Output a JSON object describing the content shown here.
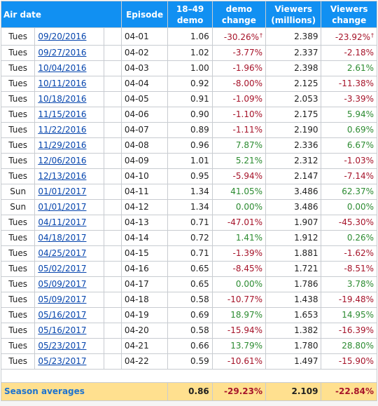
{
  "headers": {
    "air_date": "Air date",
    "episode": "Episode",
    "demo_l1": "18–49",
    "demo_l2": "demo",
    "demo_change_l1": "demo",
    "demo_change_l2": "change",
    "viewers_l1": "Viewers",
    "viewers_l2": "(millions)",
    "viewers_change_l1": "Viewers",
    "viewers_change_l2": "change"
  },
  "rows": [
    {
      "day": "Tues",
      "date": "09/20/2016",
      "episode": "04-01",
      "demo": "1.06",
      "demo_change": "-30.26%",
      "demo_change_dagger": "†",
      "viewers": "2.389",
      "viewers_change": "-23.92%",
      "viewers_change_dagger": "†"
    },
    {
      "day": "Tues",
      "date": "09/27/2016",
      "episode": "04-02",
      "demo": "1.02",
      "demo_change": "-3.77%",
      "viewers": "2.337",
      "viewers_change": "-2.18%"
    },
    {
      "day": "Tues",
      "date": "10/04/2016",
      "episode": "04-03",
      "demo": "1.00",
      "demo_change": "-1.96%",
      "viewers": "2.398",
      "viewers_change": "2.61%"
    },
    {
      "day": "Tues",
      "date": "10/11/2016",
      "episode": "04-04",
      "demo": "0.92",
      "demo_change": "-8.00%",
      "viewers": "2.125",
      "viewers_change": "-11.38%"
    },
    {
      "day": "Tues",
      "date": "10/18/2016",
      "episode": "04-05",
      "demo": "0.91",
      "demo_change": "-1.09%",
      "viewers": "2.053",
      "viewers_change": "-3.39%"
    },
    {
      "day": "Tues",
      "date": "11/15/2016",
      "episode": "04-06",
      "demo": "0.90",
      "demo_change": "-1.10%",
      "viewers": "2.175",
      "viewers_change": "5.94%"
    },
    {
      "day": "Tues",
      "date": "11/22/2016",
      "episode": "04-07",
      "demo": "0.89",
      "demo_change": "-1.11%",
      "viewers": "2.190",
      "viewers_change": "0.69%"
    },
    {
      "day": "Tues",
      "date": "11/29/2016",
      "episode": "04-08",
      "demo": "0.96",
      "demo_change": "7.87%",
      "viewers": "2.336",
      "viewers_change": "6.67%"
    },
    {
      "day": "Tues",
      "date": "12/06/2016",
      "episode": "04-09",
      "demo": "1.01",
      "demo_change": "5.21%",
      "viewers": "2.312",
      "viewers_change": "-1.03%"
    },
    {
      "day": "Tues",
      "date": "12/13/2016",
      "episode": "04-10",
      "demo": "0.95",
      "demo_change": "-5.94%",
      "viewers": "2.147",
      "viewers_change": "-7.14%"
    },
    {
      "day": "Sun",
      "date": "01/01/2017",
      "episode": "04-11",
      "demo": "1.34",
      "demo_change": "41.05%",
      "viewers": "3.486",
      "viewers_change": "62.37%"
    },
    {
      "day": "Sun",
      "date": "01/01/2017",
      "episode": "04-12",
      "demo": "1.34",
      "demo_change": "0.00%",
      "viewers": "3.486",
      "viewers_change": "0.00%"
    },
    {
      "day": "Tues",
      "date": "04/11/2017",
      "episode": "04-13",
      "demo": "0.71",
      "demo_change": "-47.01%",
      "viewers": "1.907",
      "viewers_change": "-45.30%"
    },
    {
      "day": "Tues",
      "date": "04/18/2017",
      "episode": "04-14",
      "demo": "0.72",
      "demo_change": "1.41%",
      "viewers": "1.912",
      "viewers_change": "0.26%"
    },
    {
      "day": "Tues",
      "date": "04/25/2017",
      "episode": "04-15",
      "demo": "0.71",
      "demo_change": "-1.39%",
      "viewers": "1.881",
      "viewers_change": "-1.62%"
    },
    {
      "day": "Tues",
      "date": "05/02/2017",
      "episode": "04-16",
      "demo": "0.65",
      "demo_change": "-8.45%",
      "viewers": "1.721",
      "viewers_change": "-8.51%"
    },
    {
      "day": "Tues",
      "date": "05/09/2017",
      "episode": "04-17",
      "demo": "0.65",
      "demo_change": "0.00%",
      "viewers": "1.786",
      "viewers_change": "3.78%"
    },
    {
      "day": "Tues",
      "date": "05/09/2017",
      "episode": "04-18",
      "demo": "0.58",
      "demo_change": "-10.77%",
      "viewers": "1.438",
      "viewers_change": "-19.48%"
    },
    {
      "day": "Tues",
      "date": "05/16/2017",
      "episode": "04-19",
      "demo": "0.69",
      "demo_change": "18.97%",
      "viewers": "1.653",
      "viewers_change": "14.95%"
    },
    {
      "day": "Tues",
      "date": "05/16/2017",
      "episode": "04-20",
      "demo": "0.58",
      "demo_change": "-15.94%",
      "viewers": "1.382",
      "viewers_change": "-16.39%"
    },
    {
      "day": "Tues",
      "date": "05/23/2017",
      "episode": "04-21",
      "demo": "0.66",
      "demo_change": "13.79%",
      "viewers": "1.780",
      "viewers_change": "28.80%"
    },
    {
      "day": "Tues",
      "date": "05/23/2017",
      "episode": "04-22",
      "demo": "0.59",
      "demo_change": "-10.61%",
      "viewers": "1.497",
      "viewers_change": "-15.90%"
    }
  ],
  "averages": {
    "label": "Season averages",
    "demo": "0.86",
    "demo_change": "-29.23%",
    "viewers": "2.109",
    "viewers_change": "-22.84%"
  },
  "colors": {
    "header_bg": "#1190f2",
    "header_text": "#ffffff",
    "link": "#0645ad",
    "negative": "#a6142a",
    "positive": "#2c8b31",
    "averages_bg": "#ffe08f",
    "averages_label": "#1d73cf"
  }
}
